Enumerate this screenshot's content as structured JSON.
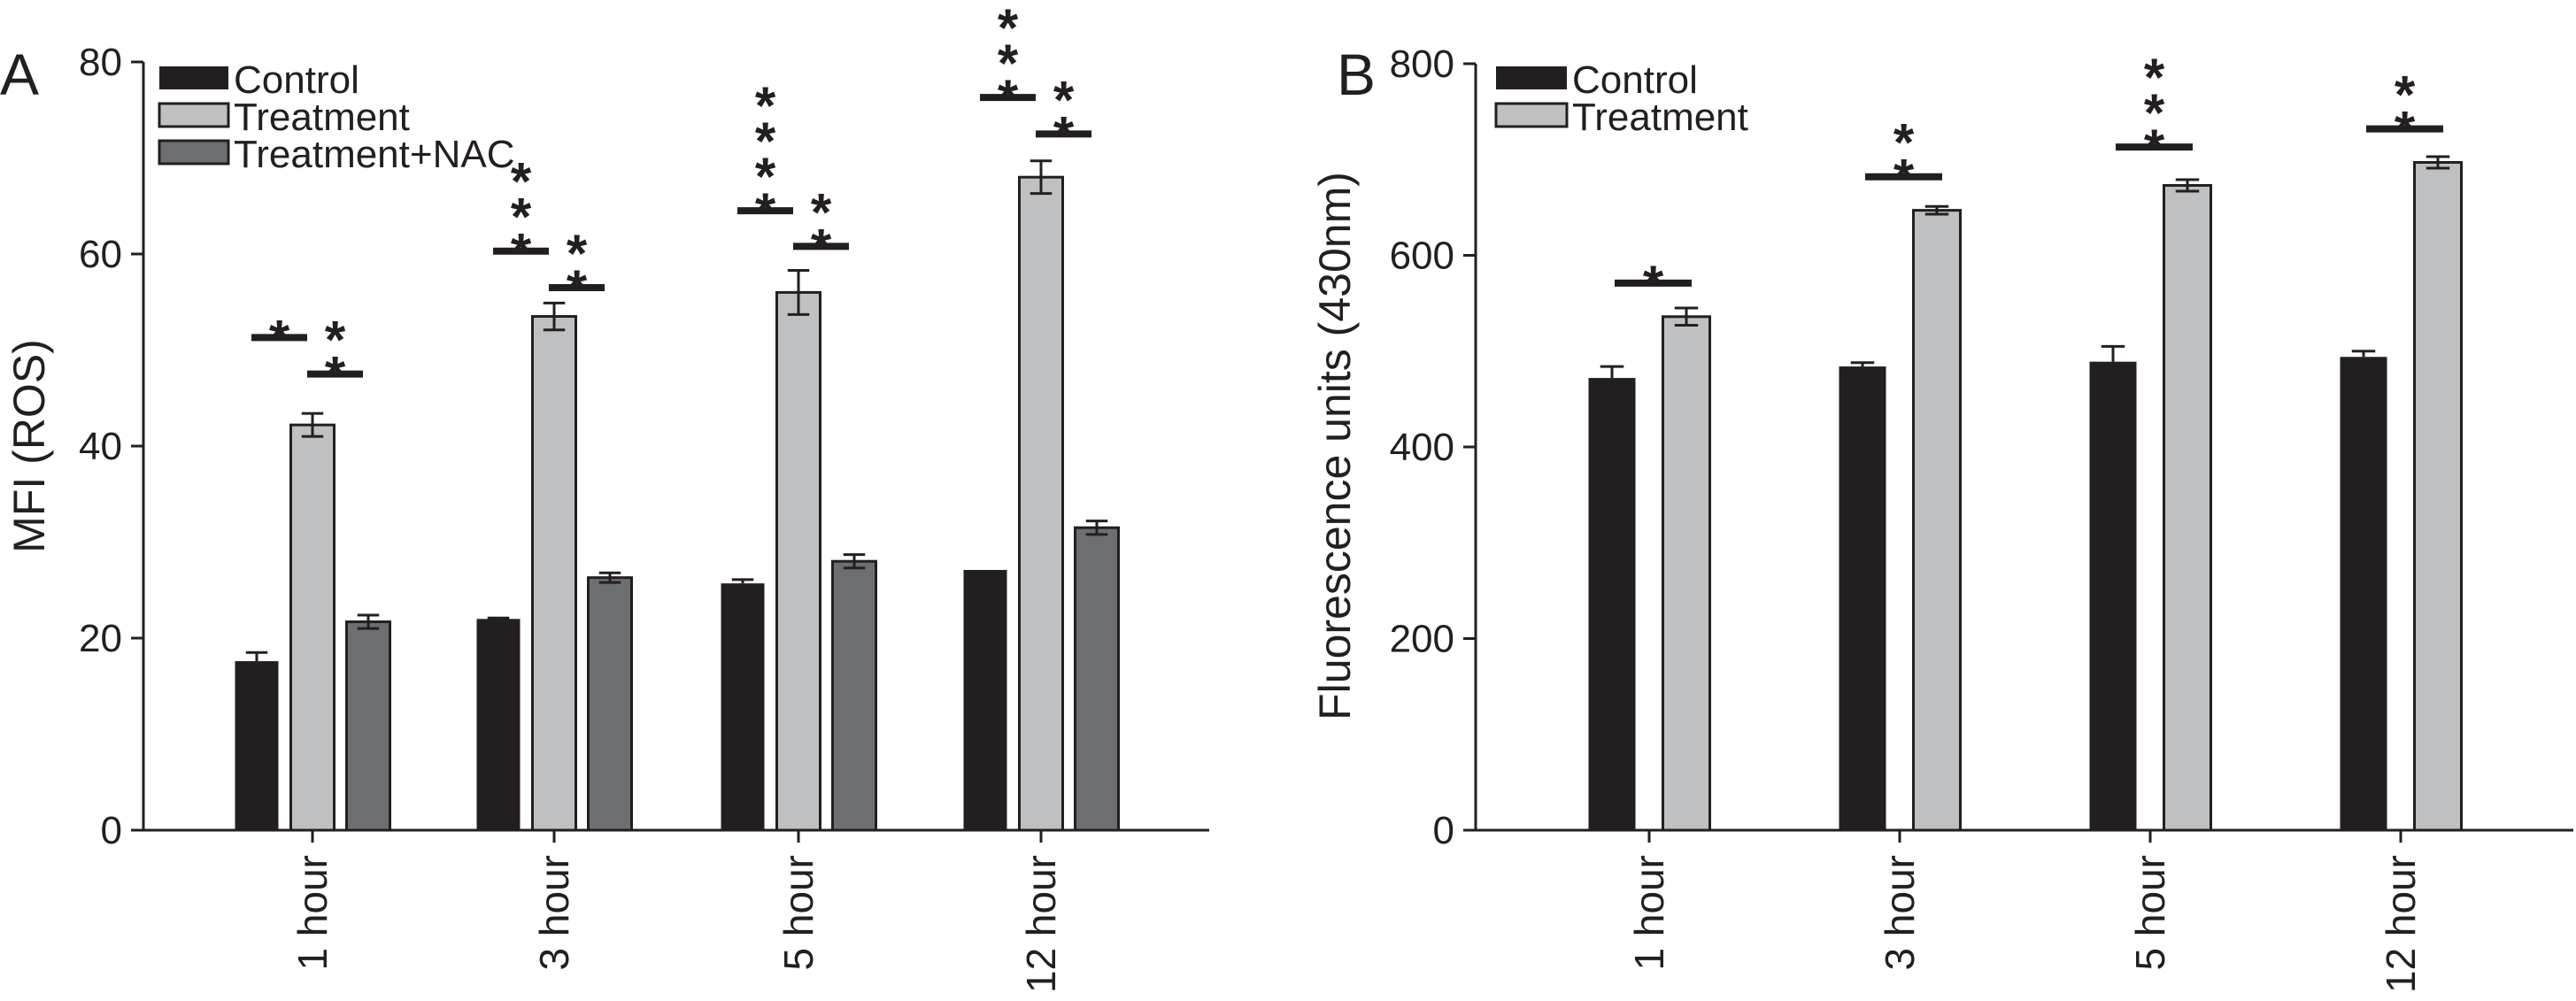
{
  "chart_data": [
    {
      "type": "bar",
      "panel_label": "A",
      "title": "",
      "xlabel": "",
      "ylabel": "MFI (ROS)",
      "ylim": [
        0,
        80
      ],
      "yticks": [
        0,
        20,
        40,
        60,
        80
      ],
      "grid": false,
      "legend_position": "top-left",
      "categories": [
        "1 hour",
        "3 hour",
        "5 hour",
        "12 hour"
      ],
      "series": [
        {
          "name": "Control",
          "color": "#231f20",
          "values": [
            17.6,
            22.0,
            25.7,
            27.1
          ],
          "errors": [
            0.9,
            0.1,
            0.4,
            0.0
          ]
        },
        {
          "name": "Treatment",
          "color": "#bfc0c2",
          "values": [
            42.2,
            53.5,
            56.0,
            68.0
          ],
          "errors": [
            1.2,
            1.4,
            2.3,
            1.7
          ]
        },
        {
          "name": "Treatment+NAC",
          "color": "#6d6e71",
          "values": [
            21.7,
            26.3,
            28.0,
            31.5
          ],
          "errors": [
            0.7,
            0.5,
            0.7,
            0.7
          ]
        }
      ],
      "significance": [
        {
          "category": "1 hour",
          "between": [
            "Control",
            "Treatment"
          ],
          "level": 51.3,
          "stars": "*"
        },
        {
          "category": "1 hour",
          "between": [
            "Treatment",
            "Treatment+NAC"
          ],
          "level": 47.5,
          "stars": "**"
        },
        {
          "category": "3 hour",
          "between": [
            "Control",
            "Treatment"
          ],
          "level": 60.3,
          "stars": "***"
        },
        {
          "category": "3 hour",
          "between": [
            "Treatment",
            "Treatment+NAC"
          ],
          "level": 56.5,
          "stars": "**"
        },
        {
          "category": "5 hour",
          "between": [
            "Control",
            "Treatment"
          ],
          "level": 64.5,
          "stars": "****"
        },
        {
          "category": "5 hour",
          "between": [
            "Treatment",
            "Treatment+NAC"
          ],
          "level": 60.8,
          "stars": "**"
        },
        {
          "category": "12 hour",
          "between": [
            "Control",
            "Treatment"
          ],
          "level": 76.3,
          "stars": "***"
        },
        {
          "category": "12 hour",
          "between": [
            "Treatment",
            "Treatment+NAC"
          ],
          "level": 72.5,
          "stars": "**"
        }
      ]
    },
    {
      "type": "bar",
      "panel_label": "B",
      "title": "",
      "xlabel": "",
      "ylabel": "Fluorescence units (430nm)",
      "ylim": [
        0,
        800
      ],
      "yticks": [
        0,
        200,
        400,
        600,
        800
      ],
      "grid": false,
      "legend_position": "top-left",
      "categories": [
        "1 hour",
        "3 hour",
        "5 hour",
        "12 hour"
      ],
      "series": [
        {
          "name": "Control",
          "color": "#231f20",
          "values": [
            472,
            484,
            489,
            494
          ],
          "errors": [
            12,
            4,
            16,
            6
          ]
        },
        {
          "name": "Treatment",
          "color": "#bfc0c2",
          "values": [
            536,
            647,
            673,
            697
          ],
          "errors": [
            9,
            4,
            6,
            6
          ]
        }
      ],
      "significance": [
        {
          "category": "1 hour",
          "between": [
            "Control",
            "Treatment"
          ],
          "level": 571,
          "stars": "*"
        },
        {
          "category": "3 hour",
          "between": [
            "Control",
            "Treatment"
          ],
          "level": 682,
          "stars": "**"
        },
        {
          "category": "5 hour",
          "between": [
            "Control",
            "Treatment"
          ],
          "level": 713,
          "stars": "***"
        },
        {
          "category": "12 hour",
          "between": [
            "Control",
            "Treatment"
          ],
          "level": 732,
          "stars": "**"
        }
      ]
    }
  ]
}
